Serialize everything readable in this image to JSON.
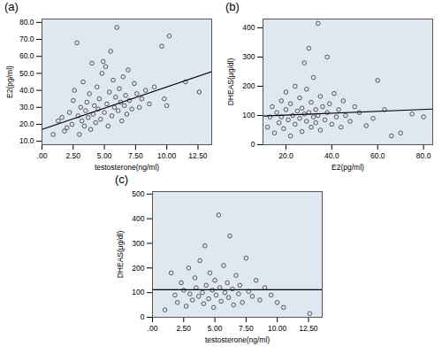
{
  "chart_data": [
    {
      "type": "scatter",
      "title": "(a)",
      "x_label": "testosterone(ng/ml)",
      "y_label": "E2(pg/ml)",
      "marker": "circle",
      "color": "#333333",
      "grid": false,
      "x": [
        0.9,
        1.3,
        1.6,
        1.8,
        2.0,
        2.2,
        2.4,
        2.5,
        2.6,
        2.8,
        2.9,
        3.0,
        3.1,
        3.2,
        3.3,
        3.4,
        3.5,
        3.6,
        3.7,
        3.8,
        3.9,
        4.0,
        4.1,
        4.2,
        4.3,
        4.4,
        4.5,
        4.6,
        4.7,
        4.8,
        4.9,
        5.0,
        5.1,
        5.2,
        5.3,
        5.4,
        5.5,
        5.6,
        5.7,
        5.8,
        5.9,
        6.0,
        6.1,
        6.2,
        6.3,
        6.4,
        6.5,
        6.6,
        6.7,
        6.8,
        6.9,
        7.0,
        7.2,
        7.4,
        7.6,
        7.8,
        8.0,
        8.3,
        8.6,
        9.0,
        9.6,
        9.8,
        10.0,
        10.2,
        11.5,
        12.6
      ],
      "values": [
        14,
        22,
        24,
        16,
        18,
        27,
        20,
        34,
        40,
        68,
        25,
        14,
        30,
        22,
        45,
        19,
        28,
        33,
        24,
        38,
        17,
        56,
        26,
        31,
        21,
        42,
        29,
        35,
        23,
        50,
        57,
        27,
        54,
        32,
        19,
        39,
        63,
        25,
        46,
        30,
        36,
        77,
        28,
        41,
        33,
        22,
        48,
        31,
        37,
        26,
        52,
        34,
        29,
        44,
        38,
        30,
        35,
        40,
        32,
        42,
        66,
        35,
        31,
        72,
        45,
        39
      ],
      "fit_line": {
        "x": [
          0,
          13.6
        ],
        "values": [
          17,
          51
        ]
      },
      "xlim": [
        0,
        13.6
      ],
      "ylim": [
        8,
        82
      ],
      "xticks": [
        {
          "value": 0,
          "label": ".00"
        },
        {
          "value": 2.5,
          "label": "2.50"
        },
        {
          "value": 5,
          "label": "5.00"
        },
        {
          "value": 7.5,
          "label": "7.50"
        },
        {
          "value": 10,
          "label": "10.00"
        },
        {
          "value": 12.5,
          "label": "12.50"
        }
      ],
      "yticks": [
        {
          "value": 10,
          "label": "10.0"
        },
        {
          "value": 20,
          "label": "20.0"
        },
        {
          "value": 30,
          "label": "30.0"
        },
        {
          "value": 40,
          "label": "40.0"
        },
        {
          "value": 50,
          "label": "50.0"
        },
        {
          "value": 60,
          "label": "60.0"
        },
        {
          "value": 70,
          "label": "70.0"
        },
        {
          "value": 80,
          "label": "80.0"
        }
      ]
    },
    {
      "type": "scatter",
      "title": "(b)",
      "x_label": "E2(pg/ml)",
      "y_label": "DHEAS(μg/dl)",
      "marker": "circle",
      "color": "#333333",
      "grid": false,
      "x": [
        12,
        13,
        14,
        15,
        16,
        17,
        18,
        18,
        19,
        20,
        20,
        21,
        22,
        22,
        23,
        24,
        24,
        25,
        26,
        26,
        27,
        27,
        28,
        28,
        29,
        29,
        30,
        30,
        31,
        31,
        32,
        32,
        33,
        33,
        34,
        34,
        35,
        35,
        36,
        37,
        38,
        38,
        39,
        40,
        41,
        42,
        43,
        44,
        45,
        46,
        48,
        50,
        52,
        55,
        58,
        60,
        63,
        66,
        70,
        75,
        80
      ],
      "values": [
        60,
        95,
        130,
        40,
        110,
        75,
        150,
        95,
        55,
        180,
        120,
        85,
        30,
        140,
        100,
        70,
        200,
        115,
        90,
        160,
        45,
        125,
        280,
        105,
        80,
        190,
        330,
        110,
        60,
        145,
        95,
        230,
        120,
        75,
        415,
        100,
        165,
        50,
        130,
        85,
        300,
        110,
        140,
        70,
        175,
        95,
        120,
        60,
        150,
        100,
        80,
        130,
        110,
        65,
        90,
        220,
        120,
        30,
        40,
        105,
        95
      ],
      "fit_line": {
        "x": [
          10,
          84
        ],
        "values": [
          98,
          122
        ]
      },
      "xlim": [
        10,
        84
      ],
      "ylim": [
        0,
        430
      ],
      "xticks": [
        {
          "value": 20,
          "label": "20.0"
        },
        {
          "value": 40,
          "label": "40.0"
        },
        {
          "value": 60,
          "label": "60.0"
        },
        {
          "value": 80,
          "label": "80.0"
        }
      ],
      "yticks": [
        0,
        100,
        200,
        300,
        400
      ]
    },
    {
      "type": "scatter",
      "title": "(c)",
      "x_label": "testosterone(ng/ml)",
      "y_label": "DHEAS(μg/dl)",
      "marker": "circle",
      "color": "#333333",
      "grid": false,
      "x": [
        1.0,
        1.5,
        1.8,
        2.0,
        2.3,
        2.5,
        2.7,
        2.9,
        3.0,
        3.2,
        3.4,
        3.5,
        3.7,
        3.8,
        4.0,
        4.1,
        4.2,
        4.3,
        4.5,
        4.6,
        4.8,
        4.9,
        5.0,
        5.1,
        5.3,
        5.4,
        5.5,
        5.7,
        5.8,
        6.0,
        6.1,
        6.2,
        6.4,
        6.5,
        6.7,
        6.9,
        7.0,
        7.2,
        7.5,
        7.7,
        8.0,
        8.3,
        8.6,
        9.0,
        9.5,
        10.0,
        10.5,
        12.6
      ],
      "values": [
        30,
        180,
        90,
        60,
        140,
        110,
        45,
        200,
        95,
        70,
        160,
        120,
        85,
        230,
        100,
        55,
        290,
        130,
        75,
        180,
        110,
        40,
        150,
        90,
        415,
        120,
        65,
        210,
        100,
        140,
        80,
        330,
        115,
        50,
        170,
        95,
        130,
        60,
        240,
        105,
        85,
        150,
        70,
        120,
        90,
        60,
        40,
        15
      ],
      "fit_line": {
        "x": [
          0,
          13.6
        ],
        "values": [
          112,
          112
        ]
      },
      "xlim": [
        0,
        13.6
      ],
      "ylim": [
        0,
        510
      ],
      "xticks": [
        {
          "value": 0,
          "label": ".00"
        },
        {
          "value": 2.5,
          "label": "2.50"
        },
        {
          "value": 5,
          "label": "5.00"
        },
        {
          "value": 7.5,
          "label": "7.50"
        },
        {
          "value": 10,
          "label": "10.00"
        },
        {
          "value": 12.5,
          "label": "12.50"
        }
      ],
      "yticks": [
        0,
        100,
        200,
        300,
        400,
        500
      ]
    }
  ]
}
